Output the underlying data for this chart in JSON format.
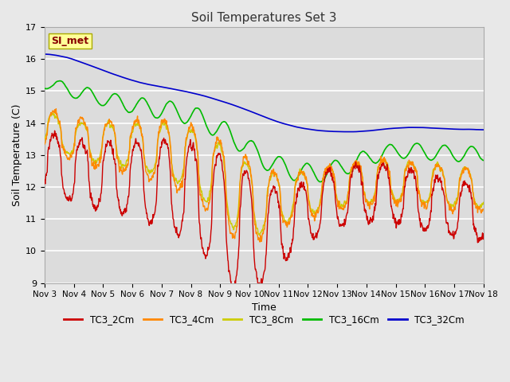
{
  "title": "Soil Temperatures Set 3",
  "xlabel": "Time",
  "ylabel": "Soil Temperature (C)",
  "ylim": [
    9.0,
    17.0
  ],
  "yticks": [
    9.0,
    10.0,
    11.0,
    12.0,
    13.0,
    14.0,
    15.0,
    16.0,
    17.0
  ],
  "x_tick_labels": [
    "Nov 3",
    "Nov 4",
    "Nov 5",
    "Nov 6",
    "Nov 7",
    "Nov 8",
    "Nov 9",
    "Nov 10",
    "Nov 11",
    "Nov 12",
    "Nov 13",
    "Nov 14",
    "Nov 15",
    "Nov 16",
    "Nov 17",
    "Nov 18"
  ],
  "fig_bg": "#e8e8e8",
  "plot_bg": "#dcdcdc",
  "annotation_text": "SI_met",
  "annotation_bg": "#ffff99",
  "annotation_border": "#aaaa00",
  "annotation_text_color": "#880000",
  "line_TC3_2Cm_color": "#cc0000",
  "line_TC3_4Cm_color": "#ff8800",
  "line_TC3_8Cm_color": "#cccc00",
  "line_TC3_16Cm_color": "#00bb00",
  "line_TC3_32Cm_color": "#0000cc",
  "lw_shallow": 1.0,
  "lw_deep": 1.2,
  "n_days": 16,
  "pts_per_day": 96
}
